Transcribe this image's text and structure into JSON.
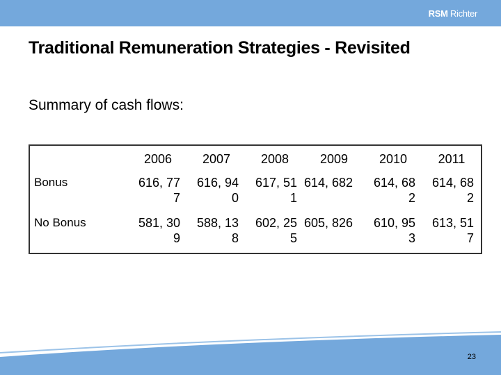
{
  "logo": {
    "bold": "RSM",
    "rest": " Richter"
  },
  "title": "Traditional Remuneration Strategies - Revisited",
  "subtitle": "Summary of cash flows:",
  "table": {
    "headers": [
      "",
      "2006",
      "2007",
      "2008",
      "2009",
      "2010",
      "2011"
    ],
    "rows": [
      {
        "label": "Bonus",
        "values": [
          "616, 777",
          "616, 940",
          "617, 511",
          "614, 682",
          "614, 682",
          "614, 682"
        ]
      },
      {
        "label": "No Bonus",
        "values": [
          "581, 309",
          "588, 138",
          "602, 255",
          "605, 826",
          "610, 953",
          "613, 517"
        ]
      }
    ]
  },
  "page_number": "23",
  "colors": {
    "band": "#74a8dc"
  }
}
